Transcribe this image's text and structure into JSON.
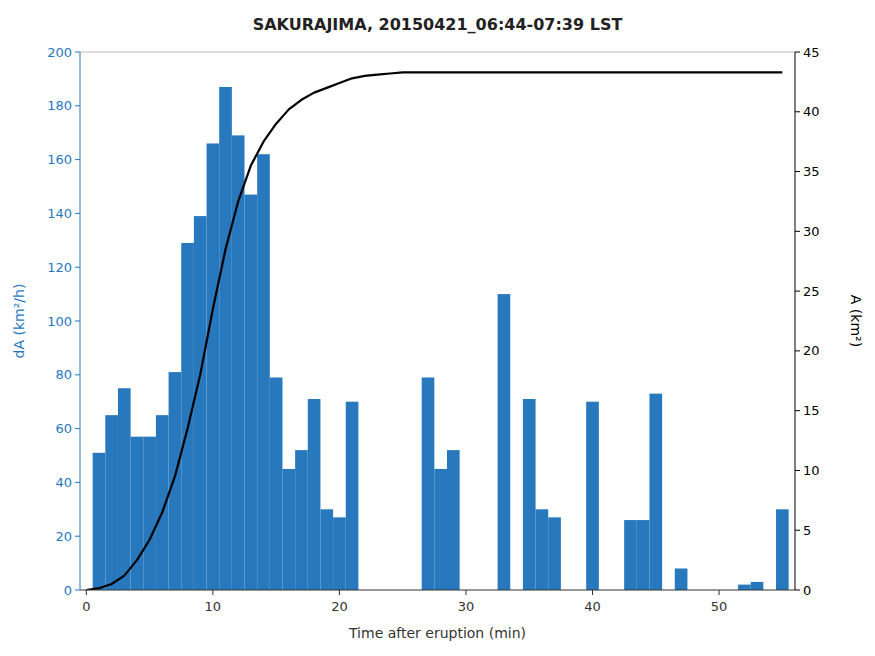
{
  "chart_data": {
    "type": "bar",
    "title": "SAKURAJIMA, 20150421_06:44-07:39 LST",
    "xlabel": "Time after eruption (min)",
    "ylabel": "dA (km²/h)",
    "y2label": "A (km²)",
    "xlim": [
      -0.5,
      56
    ],
    "xticks": [
      0,
      10,
      20,
      30,
      40,
      50
    ],
    "ylim": [
      0,
      200
    ],
    "yticks": [
      0,
      20,
      40,
      60,
      80,
      100,
      120,
      140,
      160,
      180,
      200
    ],
    "y2lim": [
      0,
      45
    ],
    "y2ticks": [
      0,
      5,
      10,
      15,
      20,
      25,
      30,
      35,
      40,
      45
    ],
    "grid": false,
    "series": [
      {
        "type": "bar",
        "color": "#2878BE",
        "x": [
          1,
          2,
          3,
          4,
          5,
          6,
          7,
          8,
          9,
          10,
          11,
          12,
          13,
          14,
          15,
          16,
          17,
          18,
          19,
          20,
          21,
          27,
          28,
          29,
          33,
          35,
          36,
          37,
          40,
          43,
          44,
          45,
          47,
          52,
          53,
          55
        ],
        "values": [
          51,
          65,
          75,
          57,
          57,
          65,
          81,
          129,
          139,
          166,
          187,
          169,
          147,
          162,
          79,
          45,
          52,
          71,
          30,
          27,
          70,
          79,
          45,
          52,
          110,
          71,
          30,
          27,
          70,
          26,
          26,
          73,
          8,
          2,
          3,
          30
        ]
      },
      {
        "type": "line",
        "color": "#000000",
        "axis": "y2",
        "x": [
          0,
          1,
          2,
          3,
          4,
          5,
          6,
          7,
          8,
          9,
          10,
          11,
          12,
          13,
          14,
          15,
          16,
          17,
          18,
          19,
          20,
          21,
          22,
          23,
          24,
          25,
          55
        ],
        "values": [
          0,
          0.15,
          0.5,
          1.2,
          2.5,
          4.2,
          6.5,
          9.5,
          13.5,
          18.0,
          23.5,
          28.5,
          32.5,
          35.5,
          37.5,
          39.0,
          40.2,
          41.0,
          41.6,
          42.0,
          42.4,
          42.8,
          43.0,
          43.1,
          43.2,
          43.3,
          43.3
        ]
      }
    ]
  }
}
